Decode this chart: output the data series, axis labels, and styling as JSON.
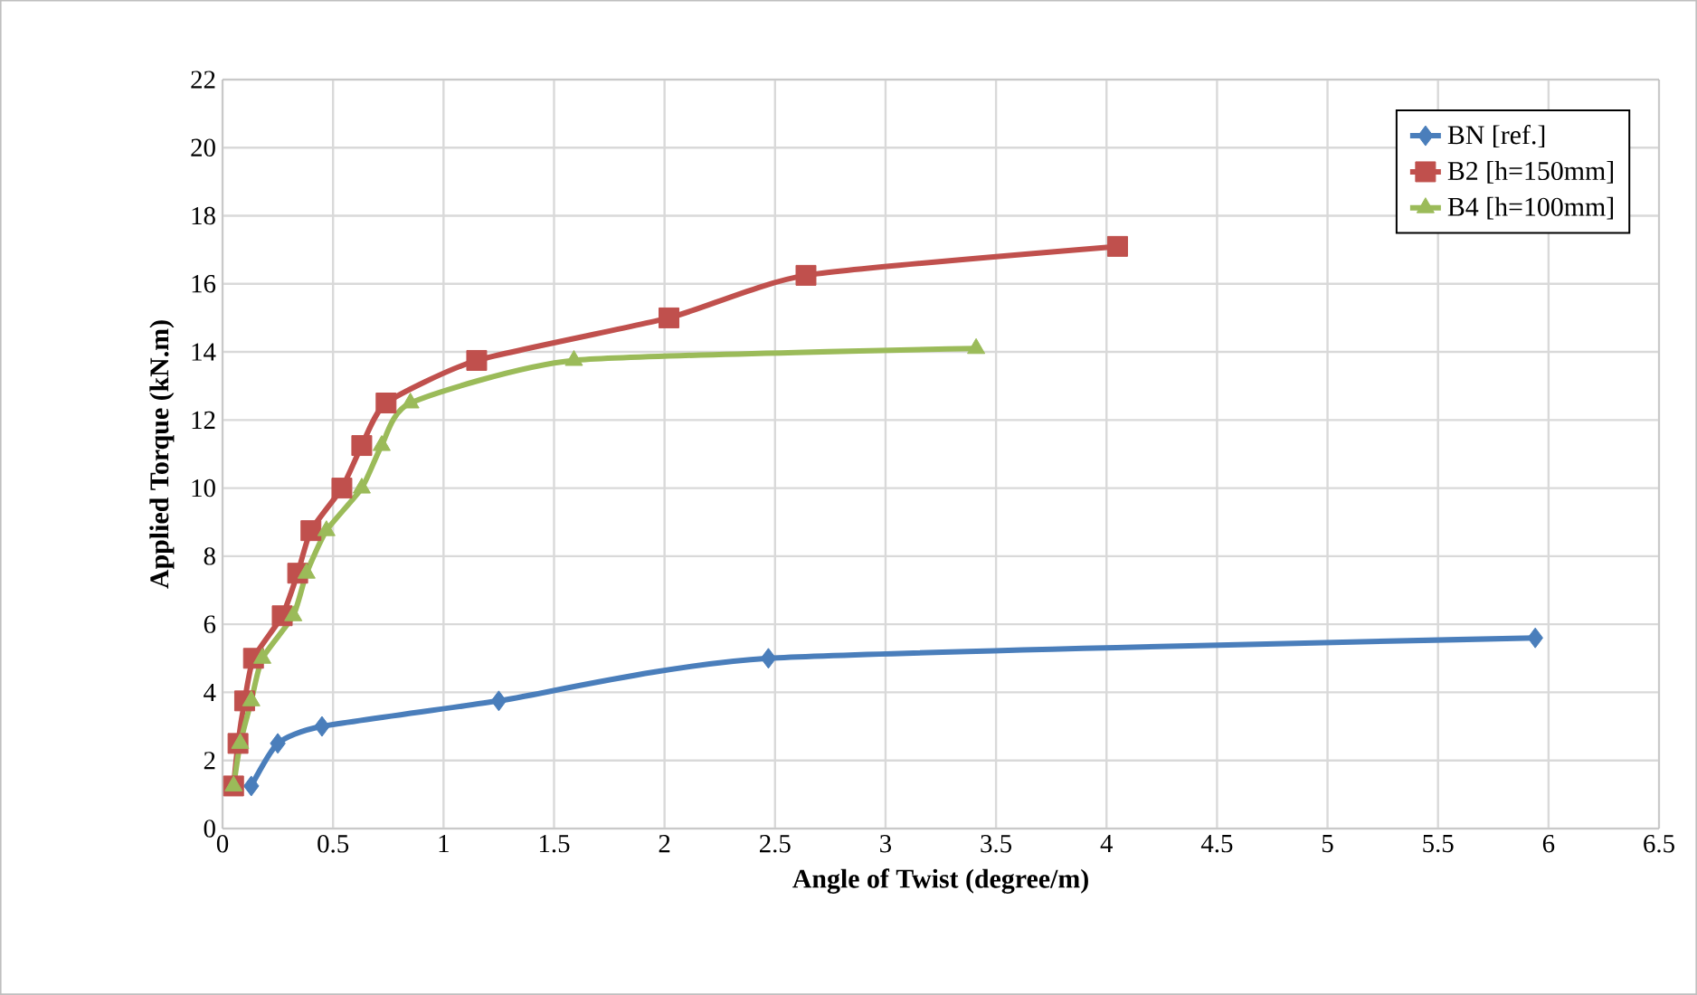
{
  "chart_data": {
    "type": "line",
    "xlabel": "Angle of Twist (degree/m)",
    "ylabel": "Applied Torque (kN.m)",
    "xlim": [
      0,
      6.5
    ],
    "xticks": [
      0,
      0.5,
      1,
      1.5,
      2,
      2.5,
      3,
      3.5,
      4,
      4.5,
      5,
      5.5,
      6,
      6.5
    ],
    "ylim": [
      0,
      22
    ],
    "yticks": [
      0,
      2,
      4,
      6,
      8,
      10,
      12,
      14,
      16,
      18,
      20,
      22
    ],
    "grid": true,
    "legend": "top right",
    "series": [
      {
        "name": "BN [ref.]",
        "color": "#4a7ebb",
        "marker": "diamond",
        "x": [
          0.13,
          0.25,
          0.45,
          1.25,
          2.47,
          5.94
        ],
        "values": [
          1.25,
          2.5,
          3.0,
          3.75,
          5.0,
          5.6
        ]
      },
      {
        "name": "B2 [h=150mm]",
        "color": "#c0504d",
        "marker": "square",
        "x": [
          0.05,
          0.07,
          0.1,
          0.14,
          0.27,
          0.34,
          0.4,
          0.54,
          0.63,
          0.74,
          1.15,
          2.02,
          2.64,
          4.05
        ],
        "values": [
          1.25,
          2.5,
          3.75,
          5.0,
          6.25,
          7.5,
          8.75,
          10.0,
          11.25,
          12.5,
          13.75,
          15.0,
          16.25,
          17.1
        ]
      },
      {
        "name": "B4 [h=100mm]",
        "color": "#9bbb59",
        "marker": "triangle",
        "x": [
          0.05,
          0.08,
          0.13,
          0.18,
          0.32,
          0.38,
          0.47,
          0.63,
          0.72,
          0.85,
          1.59,
          3.41
        ],
        "values": [
          1.25,
          2.5,
          3.75,
          5.0,
          6.25,
          7.5,
          8.75,
          10.0,
          11.25,
          12.5,
          13.75,
          14.1
        ]
      }
    ]
  }
}
